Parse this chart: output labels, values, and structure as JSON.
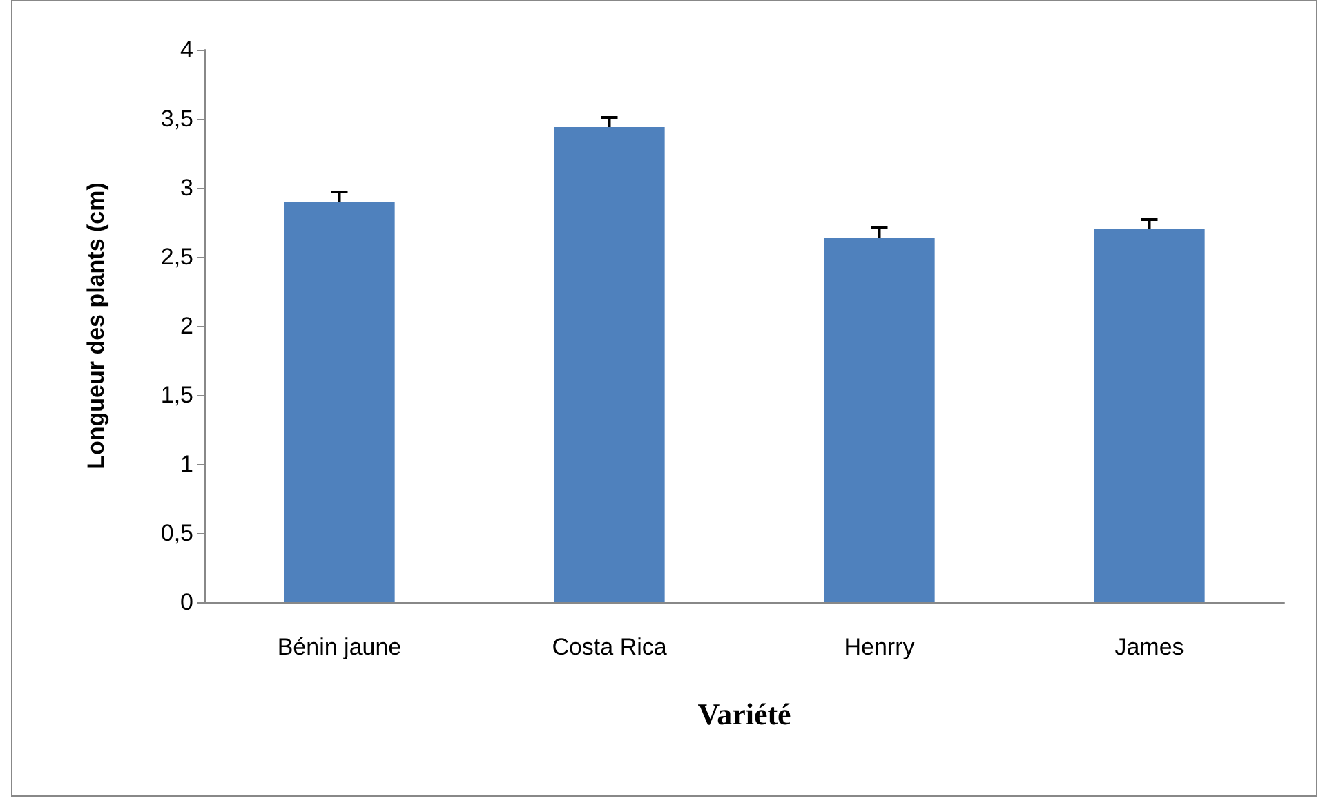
{
  "chart_data": {
    "type": "bar",
    "xlabel": "Variété",
    "ylabel": "Longueur des plants (cm)",
    "categories": [
      "Bénin jaune",
      "Costa Rica",
      "Henrry",
      "James"
    ],
    "values": [
      2.9,
      3.44,
      2.64,
      2.7
    ],
    "errors": [
      0.07,
      0.07,
      0.07,
      0.07
    ],
    "color": "#4f81bd",
    "ylim": [
      0,
      4
    ],
    "yticks": [
      0,
      {
        "value": 0.5,
        "label": "0,5"
      },
      1,
      {
        "value": 1.5,
        "label": "1,5"
      },
      2,
      {
        "value": 2.5,
        "label": "2,5"
      },
      3,
      {
        "value": 3.5,
        "label": "3,5"
      },
      4
    ],
    "grid": false
  }
}
